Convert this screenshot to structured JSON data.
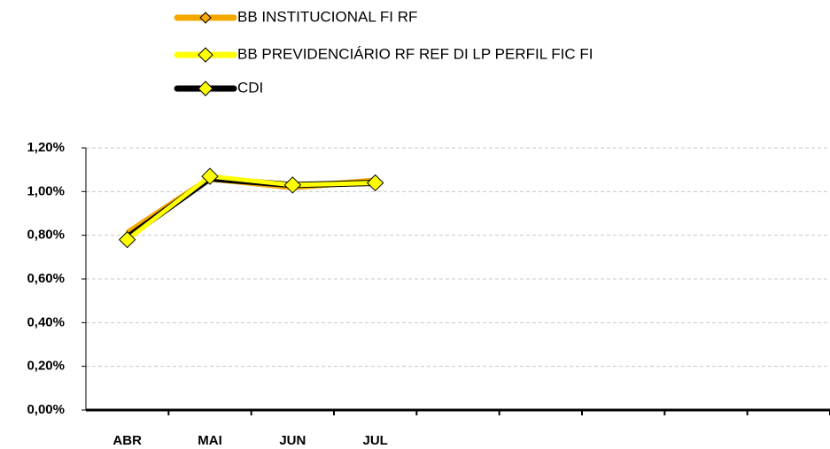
{
  "chart_data": {
    "type": "line",
    "categories": [
      "ABR",
      "MAI",
      "JUN",
      "JUL",
      null,
      null,
      null,
      null,
      null
    ],
    "series": [
      {
        "name": "BB INSTITUCIONAL FI RF",
        "color": "#f5a800",
        "values": [
          0.81,
          1.06,
          1.02,
          1.05,
          null,
          null,
          null,
          null,
          null
        ]
      },
      {
        "name": "BB PREVIDENCIÁRIO RF REF DI LP PERFIL FIC FI",
        "color": "#ffff00",
        "values": [
          0.78,
          1.07,
          1.03,
          1.04,
          null,
          null,
          null,
          null,
          null
        ]
      },
      {
        "name": "CDI",
        "color": "#000000",
        "values": [
          0.79,
          1.06,
          1.03,
          1.04,
          null,
          null,
          null,
          null,
          null
        ]
      }
    ],
    "ylim": [
      0,
      1.2
    ],
    "yticks": [
      {
        "value": 0,
        "label": "0,00%"
      },
      {
        "value": 0.2,
        "label": "0,20%"
      },
      {
        "value": 0.4,
        "label": "0,40%"
      },
      {
        "value": 0.6,
        "label": "0,60%"
      },
      {
        "value": 0.8,
        "label": "0,80%"
      },
      {
        "value": 1.0,
        "label": "1,00%"
      },
      {
        "value": 1.2,
        "label": "1,20%"
      }
    ],
    "grid": true,
    "legend": "top"
  }
}
